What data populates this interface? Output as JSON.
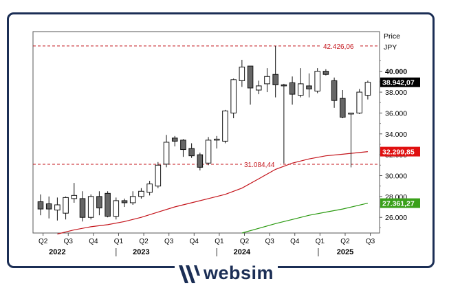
{
  "brand": {
    "name": "websim",
    "color": "#1b2e55"
  },
  "chart_data": {
    "type": "candlestick",
    "period": "monthly",
    "currency_label": "JPY",
    "axis_title": "Price",
    "ylim": [
      24500,
      43800
    ],
    "yticks": [
      26000,
      28000,
      30000,
      32000,
      34000,
      36000,
      38000,
      40000
    ],
    "ytick_labels": [
      "26.000",
      "28.000",
      "30.000",
      "32.000",
      "34.000",
      "36.000",
      "38.000",
      "40.000"
    ],
    "x_quarter_labels": [
      "Q2",
      "Q3",
      "Q4",
      "Q1",
      "Q2",
      "Q3",
      "Q4",
      "Q1",
      "Q2",
      "Q3",
      "Q4",
      "Q1",
      "Q2",
      "Q3"
    ],
    "x_year_labels": [
      "2022",
      "2023",
      "2024",
      "2025"
    ],
    "candles": [
      {
        "o": 27500,
        "h": 28200,
        "l": 26200,
        "c": 26800
      },
      {
        "o": 27300,
        "h": 28000,
        "l": 25900,
        "c": 26800
      },
      {
        "o": 26700,
        "h": 27900,
        "l": 25700,
        "c": 27200
      },
      {
        "o": 26400,
        "h": 28000,
        "l": 25800,
        "c": 27900
      },
      {
        "o": 27800,
        "h": 29300,
        "l": 27400,
        "c": 28100
      },
      {
        "o": 27800,
        "h": 28500,
        "l": 25600,
        "c": 26000
      },
      {
        "o": 26000,
        "h": 28200,
        "l": 25800,
        "c": 28000
      },
      {
        "o": 28000,
        "h": 28500,
        "l": 26200,
        "c": 26900
      },
      {
        "o": 28300,
        "h": 28500,
        "l": 26000,
        "c": 26100
      },
      {
        "o": 26100,
        "h": 27900,
        "l": 25800,
        "c": 27600
      },
      {
        "o": 27600,
        "h": 27800,
        "l": 27000,
        "c": 27400
      },
      {
        "o": 27400,
        "h": 28500,
        "l": 27200,
        "c": 28000
      },
      {
        "o": 28000,
        "h": 28800,
        "l": 27800,
        "c": 28500
      },
      {
        "o": 28400,
        "h": 29500,
        "l": 28100,
        "c": 29200
      },
      {
        "o": 29000,
        "h": 31300,
        "l": 28800,
        "c": 31000
      },
      {
        "o": 31100,
        "h": 33900,
        "l": 30800,
        "c": 33200
      },
      {
        "o": 33600,
        "h": 33800,
        "l": 32800,
        "c": 33300
      },
      {
        "o": 33400,
        "h": 33500,
        "l": 31800,
        "c": 32500
      },
      {
        "o": 32600,
        "h": 33100,
        "l": 31700,
        "c": 31900
      },
      {
        "o": 32000,
        "h": 32200,
        "l": 30500,
        "c": 30800
      },
      {
        "o": 31200,
        "h": 33700,
        "l": 31000,
        "c": 33400
      },
      {
        "o": 33400,
        "h": 33800,
        "l": 32600,
        "c": 33500
      },
      {
        "o": 33300,
        "h": 36300,
        "l": 33100,
        "c": 36200
      },
      {
        "o": 36000,
        "h": 39300,
        "l": 35500,
        "c": 39200
      },
      {
        "o": 39100,
        "h": 41100,
        "l": 38500,
        "c": 40400
      },
      {
        "o": 40500,
        "h": 40500,
        "l": 36800,
        "c": 38400
      },
      {
        "o": 38200,
        "h": 39100,
        "l": 37800,
        "c": 38600
      },
      {
        "o": 38800,
        "h": 40300,
        "l": 38000,
        "c": 39500
      },
      {
        "o": 39700,
        "h": 42426,
        "l": 37500,
        "c": 38700
      },
      {
        "o": 38700,
        "h": 38800,
        "l": 31156,
        "c": 38600
      },
      {
        "o": 38900,
        "h": 39500,
        "l": 36800,
        "c": 37800
      },
      {
        "o": 37700,
        "h": 40300,
        "l": 37500,
        "c": 38800
      },
      {
        "o": 38600,
        "h": 39800,
        "l": 37500,
        "c": 38300
      },
      {
        "o": 38100,
        "h": 40300,
        "l": 37900,
        "c": 40000
      },
      {
        "o": 40000,
        "h": 40200,
        "l": 39600,
        "c": 39700
      },
      {
        "o": 39100,
        "h": 39400,
        "l": 36500,
        "c": 37200
      },
      {
        "o": 37400,
        "h": 38200,
        "l": 35500,
        "c": 35600
      },
      {
        "o": 35900,
        "h": 36000,
        "l": 30792,
        "c": 36000
      },
      {
        "o": 36000,
        "h": 38300,
        "l": 35900,
        "c": 38000
      },
      {
        "o": 37700,
        "h": 39100,
        "l": 37300,
        "c": 38942
      }
    ],
    "moving_averages": [
      {
        "name": "MA red",
        "color": "#c4141b",
        "last": "32.299,85",
        "points": [
          [
            2,
            24400
          ],
          [
            4,
            24800
          ],
          [
            6,
            25100
          ],
          [
            8,
            25300
          ],
          [
            10,
            25600
          ],
          [
            12,
            26000
          ],
          [
            14,
            26500
          ],
          [
            16,
            27000
          ],
          [
            18,
            27400
          ],
          [
            20,
            27800
          ],
          [
            22,
            28200
          ],
          [
            24,
            28800
          ],
          [
            26,
            29700
          ],
          [
            28,
            30600
          ],
          [
            30,
            31200
          ],
          [
            32,
            31600
          ],
          [
            34,
            31900
          ],
          [
            36,
            32050
          ],
          [
            39,
            32300
          ]
        ]
      },
      {
        "name": "MA green",
        "color": "#2a9a10",
        "last": "27.361,27",
        "points": [
          [
            24,
            24500
          ],
          [
            26,
            24950
          ],
          [
            28,
            25400
          ],
          [
            30,
            25800
          ],
          [
            32,
            26200
          ],
          [
            34,
            26500
          ],
          [
            36,
            26800
          ],
          [
            39,
            27361
          ]
        ]
      }
    ],
    "hlines": [
      {
        "value": 42426.06,
        "label": "42.426,06",
        "color": "#c4141b"
      },
      {
        "value": 31084.44,
        "label": "31.084,44",
        "color": "#c4141b"
      }
    ],
    "last_price": {
      "value": 38942.07,
      "label": "38.942,07",
      "color": "#000000"
    },
    "ma_tags": [
      {
        "value": 32299.85,
        "label": "32.299,85",
        "color": "#e01010"
      },
      {
        "value": 27361.27,
        "label": "27.361,27",
        "color": "#3aa01a"
      }
    ]
  }
}
